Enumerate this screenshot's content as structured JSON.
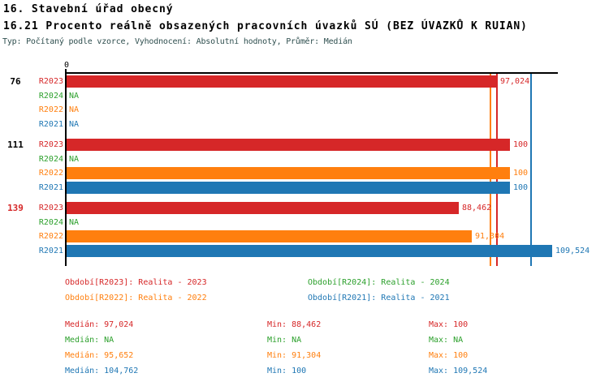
{
  "header": {
    "title_line1": "16. Stavební úřad obecný",
    "title_line2": "16.21 Procento reálně obsazených pracovních úvazků SÚ (BEZ ÚVAZKŮ K RUIAN)",
    "subtitle": "Typ: Počítaný podle vzorce, Vyhodnocení: Absolutní hodnoty, Průměr: Medián"
  },
  "colors": {
    "red": "#d62728",
    "green": "#2ca02c",
    "orange": "#ff7f0e",
    "blue": "#1f77b4",
    "black": "#000000",
    "subtitle_text": "#2f4f4f",
    "axis": "#000000"
  },
  "chart_data": {
    "type": "bar",
    "orientation": "horizontal",
    "title": "16.21 Procento reálně obsazených pracovních úvazků SÚ (BEZ ÚVAZKŮ K RUIAN)",
    "value_axis": {
      "origin_tick_label": "0",
      "min": 0,
      "max": 111,
      "grid": false
    },
    "series": [
      {
        "id": "R2023",
        "legend": "Období[R2023]: Realita - 2023",
        "color_key": "red"
      },
      {
        "id": "R2024",
        "legend": "Období[R2024]: Realita - 2024",
        "color_key": "green"
      },
      {
        "id": "R2022",
        "legend": "Období[R2022]: Realita - 2022",
        "color_key": "orange"
      },
      {
        "id": "R2021",
        "legend": "Období[R2021]: Realita - 2021",
        "color_key": "blue"
      }
    ],
    "groups": [
      {
        "label": "76",
        "label_color_key": "black",
        "rows": [
          {
            "series": "R2023",
            "color_key": "red",
            "value": 97.024,
            "value_label": "97,024"
          },
          {
            "series": "R2024",
            "color_key": "green",
            "value": null,
            "value_label": "NA"
          },
          {
            "series": "R2022",
            "color_key": "orange",
            "value": null,
            "value_label": "NA"
          },
          {
            "series": "R2021",
            "color_key": "blue",
            "value": null,
            "value_label": "NA"
          }
        ]
      },
      {
        "label": "111",
        "label_color_key": "black",
        "rows": [
          {
            "series": "R2023",
            "color_key": "red",
            "value": 100,
            "value_label": "100"
          },
          {
            "series": "R2024",
            "color_key": "green",
            "value": null,
            "value_label": "NA"
          },
          {
            "series": "R2022",
            "color_key": "orange",
            "value": 100,
            "value_label": "100"
          },
          {
            "series": "R2021",
            "color_key": "blue",
            "value": 100,
            "value_label": "100"
          }
        ]
      },
      {
        "label": "139",
        "label_color_key": "red",
        "rows": [
          {
            "series": "R2023",
            "color_key": "red",
            "value": 88.462,
            "value_label": "88,462"
          },
          {
            "series": "R2024",
            "color_key": "green",
            "value": null,
            "value_label": "NA"
          },
          {
            "series": "R2022",
            "color_key": "orange",
            "value": 91.304,
            "value_label": "91,304"
          },
          {
            "series": "R2021",
            "color_key": "blue",
            "value": 109.524,
            "value_label": "109,524"
          }
        ]
      }
    ],
    "median_lines": [
      {
        "series": "R2023",
        "value": 97.024,
        "color_key": "red"
      },
      {
        "series": "R2022",
        "value": 95.652,
        "color_key": "orange"
      },
      {
        "series": "R2021",
        "value": 104.762,
        "color_key": "blue"
      }
    ]
  },
  "stats": {
    "labels": {
      "median": "Medián:",
      "min": "Min:",
      "max": "Max:"
    },
    "rows": [
      {
        "series": "R2023",
        "color_key": "red",
        "median": "97,024",
        "min": "88,462",
        "max": "100"
      },
      {
        "series": "R2024",
        "color_key": "green",
        "median": "NA",
        "min": "NA",
        "max": "NA"
      },
      {
        "series": "R2022",
        "color_key": "orange",
        "median": "95,652",
        "min": "91,304",
        "max": "100"
      },
      {
        "series": "R2021",
        "color_key": "blue",
        "median": "104,762",
        "min": "100",
        "max": "109,524"
      }
    ]
  }
}
